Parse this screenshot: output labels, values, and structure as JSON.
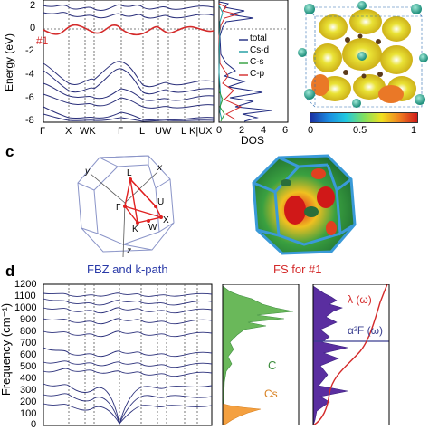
{
  "panel_a": {
    "ylabel": "Energy (eV)",
    "band_label": "#1",
    "y_ticks": [
      "2",
      "0",
      "-2",
      "-4",
      "-6",
      "-8"
    ],
    "x_ticks": [
      "Γ",
      "X",
      "WK",
      "Γ",
      "L",
      "UW",
      "L",
      "K|UX"
    ]
  },
  "panel_dos": {
    "xlabel": "DOS",
    "x_ticks": [
      "0",
      "2",
      "4",
      "6"
    ],
    "legend": [
      "total",
      "Cs-d",
      "C-s",
      "C-p"
    ],
    "colors": [
      "#1f2a80",
      "#1a9aa0",
      "#2e9e3a",
      "#d42a2a"
    ]
  },
  "colorbar": {
    "ticks": [
      "0",
      "0.5",
      "1"
    ]
  },
  "panel_c": {
    "label": "c",
    "caption_fbz": "FBZ and k-path",
    "caption_fs": "FS for #1",
    "axis_x": "x",
    "axis_y": "y",
    "axis_z": "z",
    "points": [
      "L",
      "U",
      "Γ",
      "X",
      "K",
      "W"
    ]
  },
  "panel_d": {
    "label": "d",
    "ylabel": "Frequency (cm⁻¹)",
    "y_ticks": [
      "1200",
      "1100",
      "1000",
      "900",
      "800",
      "700",
      "600",
      "500",
      "400",
      "300",
      "200",
      "100",
      "0"
    ],
    "label_C": "C",
    "label_Cs": "Cs",
    "label_lambda": "λ (ω)",
    "label_a2f": "α²F (ω)"
  }
}
